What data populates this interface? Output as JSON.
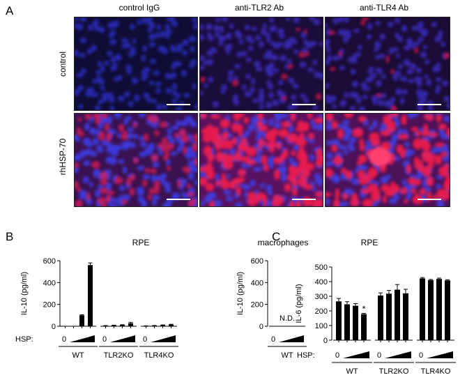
{
  "panel_a": {
    "letter": "A",
    "columns": [
      "control IgG",
      "anti-TLR2 Ab",
      "anti-TLR4 Ab"
    ],
    "rows": [
      "control",
      "rhHSP-70"
    ],
    "colors": {
      "nuclei": "#2a2ad0",
      "signal": "#ff1f4a",
      "background": "#0f0d35"
    }
  },
  "panel_b": {
    "letter": "B",
    "chart_data": [
      {
        "type": "bar",
        "title": "RPE",
        "ylabel": "IL-10 (pg/ml)",
        "ylim": [
          0,
          600
        ],
        "yticks": [
          0,
          200,
          400,
          600
        ],
        "dose_label": "HSP:",
        "groups": [
          {
            "name": "WT",
            "zero_label": "0",
            "values": [
              0,
              1,
              100,
              560
            ],
            "errors": [
              0,
              0,
              5,
              20
            ]
          },
          {
            "name": "TLR2KO",
            "zero_label": "0",
            "values": [
              5,
              8,
              12,
              28
            ],
            "errors": [
              1,
              1,
              2,
              8
            ]
          },
          {
            "name": "TLR4KO",
            "zero_label": "0",
            "values": [
              3,
              6,
              10,
              15
            ],
            "errors": [
              1,
              1,
              2,
              3
            ]
          }
        ]
      },
      {
        "type": "bar",
        "title": "macrophages",
        "ylabel": "IL-10 (pg/ml)",
        "ylim": [
          0,
          600
        ],
        "yticks": [
          0,
          200,
          400,
          600
        ],
        "annotation": "N.D.",
        "groups": [
          {
            "name": "WT",
            "zero_label": "0",
            "values": [],
            "errors": []
          }
        ]
      }
    ]
  },
  "panel_c": {
    "letter": "C",
    "chart_data": {
      "type": "bar",
      "title": "RPE",
      "ylabel": "IL-6 (pg/ml)",
      "ylim": [
        0,
        500
      ],
      "yticks": [
        0,
        100,
        200,
        300,
        400,
        500
      ],
      "dose_label": "HSP:",
      "significance_marker": "*",
      "groups": [
        {
          "name": "WT",
          "zero_label": "0",
          "values": [
            265,
            245,
            235,
            178
          ],
          "errors": [
            20,
            18,
            15,
            5
          ]
        },
        {
          "name": "TLR2KO",
          "zero_label": "0",
          "values": [
            305,
            318,
            345,
            320
          ],
          "errors": [
            18,
            22,
            35,
            28
          ]
        },
        {
          "name": "TLR4KO",
          "zero_label": "0",
          "values": [
            422,
            410,
            418,
            408
          ],
          "errors": [
            6,
            5,
            6,
            5
          ]
        }
      ]
    }
  }
}
